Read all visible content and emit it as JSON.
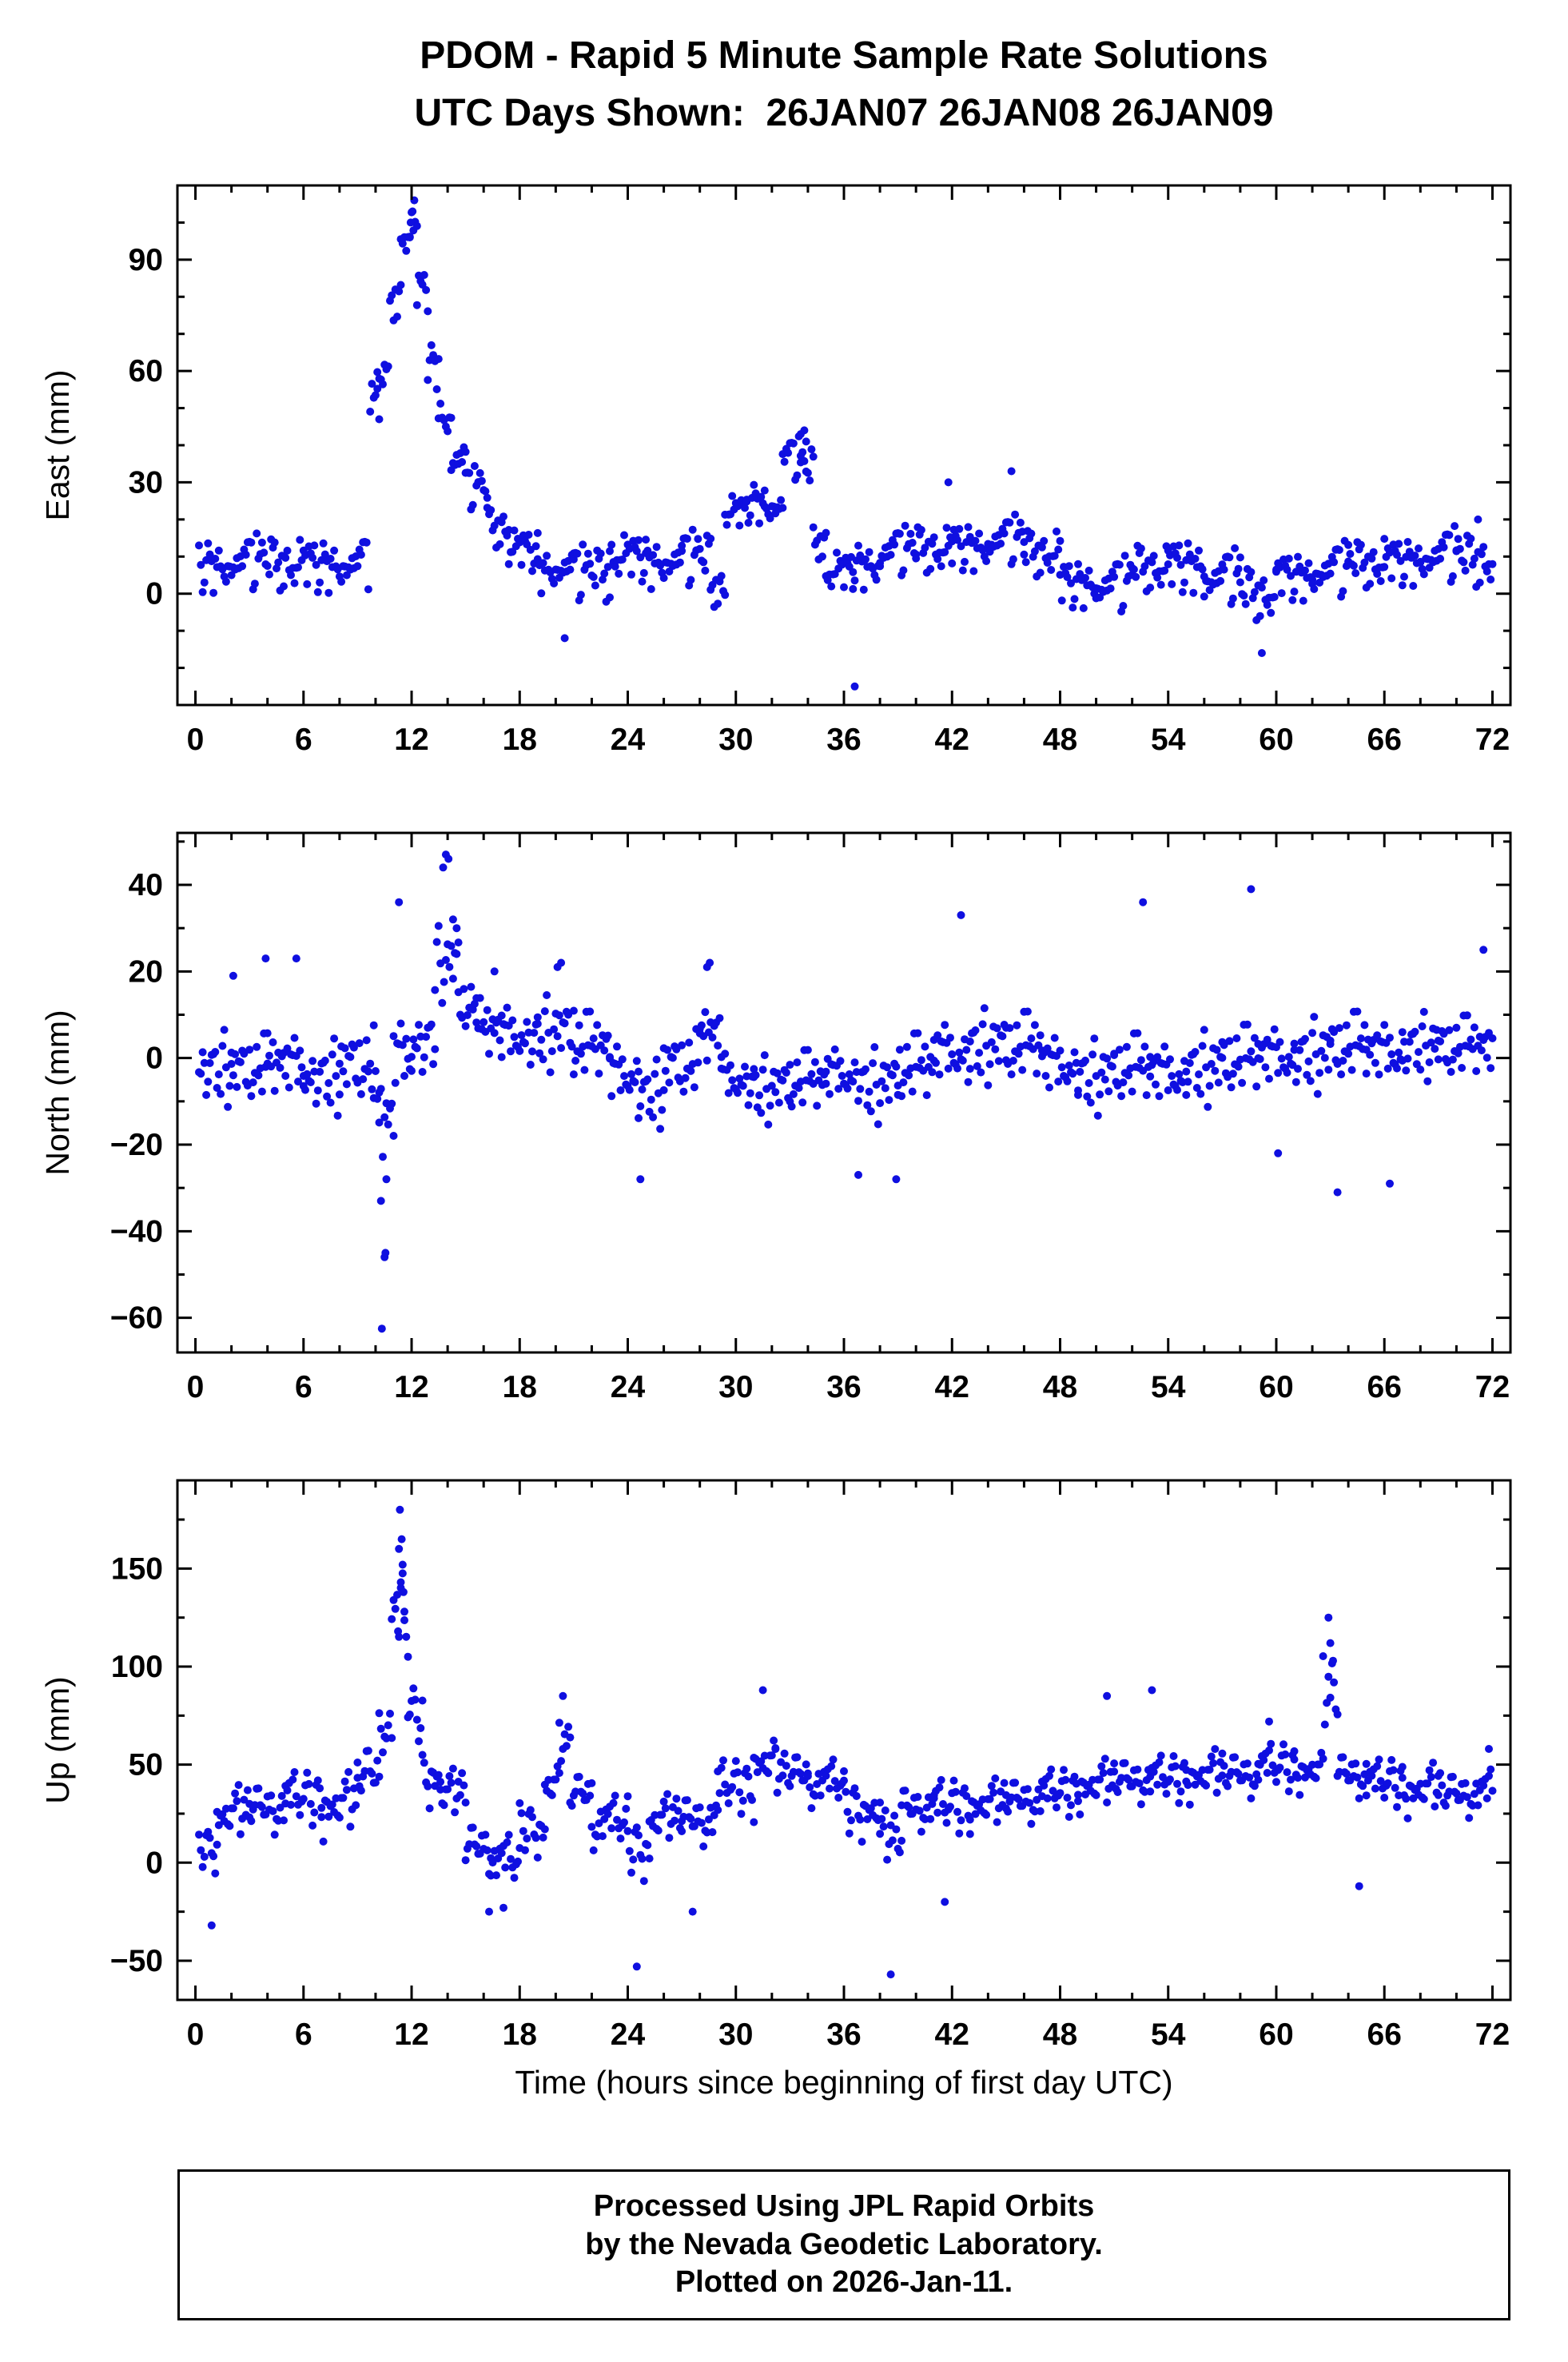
{
  "title": {
    "line1": "PDOM - Rapid 5 Minute Sample Rate Solutions",
    "line2": "UTC Days Shown:  26JAN07 26JAN08 26JAN09"
  },
  "utc_days": [
    "26JAN07",
    "26JAN08",
    "26JAN09"
  ],
  "station": "PDOM",
  "xlabel": "Time (hours since beginning of first day UTC)",
  "footer": {
    "line1": "Processed Using JPL Rapid Orbits",
    "line2": "by the Nevada Geodetic Laboratory.",
    "line3": "Plotted on 2026-Jan-11."
  },
  "point_color": "#0f0fe0",
  "frame_color": "#000000",
  "noise_profile": [
    0.12,
    -0.45,
    0.78,
    -0.23,
    0.56,
    -0.81,
    0.34,
    -0.12,
    0.67,
    -0.56,
    0.23,
    0.91,
    -0.34,
    0.45,
    -0.67,
    0.08,
    0.72,
    -0.29,
    -0.88,
    0.41,
    0.15,
    -0.52,
    0.63,
    -0.07,
    0.84,
    -0.38,
    0.27,
    -0.73,
    0.49,
    0.02,
    -0.61,
    0.35,
    0.88,
    -0.19,
    -0.44,
    0.58,
    -0.92,
    0.21,
    0.66,
    -0.31,
    0.09,
    -0.77,
    0.43,
    0.7,
    -0.15,
    -0.58,
    0.3,
    -0.05,
    0.52,
    -0.4,
    0.76,
    -0.64,
    0.18,
    0.37,
    -0.25,
    0.6,
    -0.85,
    0.04,
    0.47,
    -0.5,
    0.25,
    0.82,
    -0.1,
    -0.36
  ],
  "chart_data": [
    {
      "type": "scatter",
      "name": "east",
      "ylabel": "East (mm)",
      "xlim": [
        -1,
        73
      ],
      "ylim": [
        -30,
        110
      ],
      "yticks": [
        0,
        30,
        60,
        90
      ],
      "yminor": 10,
      "xticks": [
        0,
        6,
        12,
        18,
        24,
        30,
        36,
        42,
        48,
        54,
        60,
        66,
        72
      ],
      "xminor": 2,
      "sample_step_hours": 0.1,
      "segments": [
        [
          0.2,
          9.6,
          8,
          9
        ],
        [
          9.7,
          10.1,
          52,
          5
        ],
        [
          10.1,
          10.7,
          58,
          5
        ],
        [
          10.8,
          11.4,
          80,
          8
        ],
        [
          11.4,
          12.3,
          97,
          8
        ],
        [
          12.3,
          12.9,
          82,
          7
        ],
        [
          12.9,
          13.5,
          62,
          8
        ],
        [
          13.5,
          14.2,
          48,
          8
        ],
        [
          14.2,
          15,
          36,
          8
        ],
        [
          15,
          16.2,
          28,
          7
        ],
        [
          16.2,
          17.4,
          18,
          7
        ],
        [
          17.4,
          19,
          12,
          7
        ],
        [
          19,
          21,
          7,
          8
        ],
        [
          21,
          23,
          5,
          9
        ],
        [
          23,
          25,
          10,
          8
        ],
        [
          25,
          27,
          9,
          9
        ],
        [
          27,
          28.6,
          9,
          9
        ],
        [
          28.6,
          29.4,
          2,
          7
        ],
        [
          29.4,
          30.6,
          22,
          6
        ],
        [
          30.6,
          31.6,
          25,
          7
        ],
        [
          31.6,
          32.6,
          24,
          7
        ],
        [
          32.6,
          33.6,
          36,
          7
        ],
        [
          33.6,
          34.3,
          33,
          8
        ],
        [
          34.3,
          35,
          14,
          6
        ],
        [
          35,
          36.5,
          6,
          7
        ],
        [
          36.5,
          38,
          8,
          8
        ],
        [
          38,
          40,
          11,
          8
        ],
        [
          40,
          42,
          12,
          8
        ],
        [
          42,
          44,
          13,
          8
        ],
        [
          44,
          46,
          14,
          8
        ],
        [
          46,
          48,
          11,
          8
        ],
        [
          48,
          50,
          3,
          8
        ],
        [
          50,
          52,
          2,
          9
        ],
        [
          52,
          54,
          7,
          8
        ],
        [
          54,
          56,
          8,
          9
        ],
        [
          56,
          58,
          4,
          9
        ],
        [
          58,
          60,
          0,
          9
        ],
        [
          60,
          62,
          5,
          8
        ],
        [
          62,
          64,
          6,
          9
        ],
        [
          64,
          66,
          8,
          8
        ],
        [
          66,
          68,
          9,
          8
        ],
        [
          68,
          70,
          10,
          9
        ],
        [
          70,
          72,
          9,
          9
        ]
      ],
      "outliers": [
        [
          12.15,
          106
        ],
        [
          12.05,
          103
        ],
        [
          11.95,
          100
        ],
        [
          11.9,
          96
        ],
        [
          10.2,
          47
        ],
        [
          33.8,
          44
        ],
        [
          33.6,
          43
        ],
        [
          33.9,
          41
        ],
        [
          36.6,
          -25
        ],
        [
          59.2,
          -16
        ],
        [
          20.5,
          -12
        ],
        [
          45.3,
          33
        ],
        [
          41.8,
          30
        ],
        [
          71.2,
          20
        ]
      ]
    },
    {
      "type": "scatter",
      "name": "north",
      "ylabel": "North (mm)",
      "xlim": [
        -1,
        73
      ],
      "ylim": [
        -68,
        52
      ],
      "yticks": [
        -60,
        -40,
        -20,
        0,
        20,
        40
      ],
      "yminor": 10,
      "xticks": [
        0,
        6,
        12,
        18,
        24,
        30,
        36,
        42,
        48,
        54,
        60,
        66,
        72
      ],
      "xminor": 2,
      "sample_step_hours": 0.1,
      "segments": [
        [
          0.2,
          2,
          -2,
          10
        ],
        [
          2,
          4,
          -3,
          10
        ],
        [
          4,
          6,
          -2,
          10
        ],
        [
          6,
          8,
          -4,
          10
        ],
        [
          8,
          9.9,
          -2,
          11
        ],
        [
          9.9,
          10.2,
          -10,
          8
        ],
        [
          10.2,
          11,
          -15,
          14
        ],
        [
          11,
          12,
          0,
          12
        ],
        [
          12,
          13.3,
          4,
          11
        ],
        [
          13.3,
          14.6,
          22,
          10
        ],
        [
          14.6,
          15.6,
          12,
          8
        ],
        [
          15.6,
          17,
          6,
          9
        ],
        [
          17,
          19,
          5,
          10
        ],
        [
          19,
          21,
          6,
          10
        ],
        [
          21,
          23,
          2,
          10
        ],
        [
          23,
          24.6,
          -4,
          10
        ],
        [
          24.6,
          26,
          -8,
          9
        ],
        [
          26,
          28,
          -2,
          10
        ],
        [
          28,
          29.2,
          5,
          10
        ],
        [
          29.2,
          31,
          -5,
          9
        ],
        [
          31,
          33,
          -7,
          9
        ],
        [
          33,
          35,
          -6,
          9
        ],
        [
          35,
          37,
          -4,
          9
        ],
        [
          37,
          39,
          -6,
          10
        ],
        [
          39,
          41,
          -3,
          10
        ],
        [
          41,
          43,
          1,
          10
        ],
        [
          43,
          45,
          3,
          10
        ],
        [
          45,
          47,
          2,
          10
        ],
        [
          47,
          49,
          -2,
          10
        ],
        [
          49,
          51,
          -4,
          10
        ],
        [
          51,
          53,
          -3,
          10
        ],
        [
          53,
          55,
          -4,
          10
        ],
        [
          55,
          57,
          -2,
          10
        ],
        [
          57,
          59,
          -1,
          10
        ],
        [
          59,
          61,
          0,
          10
        ],
        [
          61,
          63,
          1,
          10
        ],
        [
          63,
          65,
          2,
          10
        ],
        [
          65,
          67,
          1,
          10
        ],
        [
          67,
          69,
          3,
          9
        ],
        [
          69,
          72,
          2,
          9
        ]
      ],
      "outliers": [
        [
          10.35,
          -62.5
        ],
        [
          10.5,
          -46
        ],
        [
          10.55,
          -45
        ],
        [
          10.3,
          -33
        ],
        [
          10.6,
          -28
        ],
        [
          11.3,
          36
        ],
        [
          13.9,
          47
        ],
        [
          14.05,
          46
        ],
        [
          13.75,
          44
        ],
        [
          14.3,
          32
        ],
        [
          14.5,
          30
        ],
        [
          2.1,
          19
        ],
        [
          3.9,
          23
        ],
        [
          5.6,
          23
        ],
        [
          16.6,
          20
        ],
        [
          20.1,
          21
        ],
        [
          20.3,
          22
        ],
        [
          24.7,
          -28
        ],
        [
          28.4,
          21
        ],
        [
          28.55,
          22
        ],
        [
          36.8,
          -27
        ],
        [
          38.9,
          -28
        ],
        [
          42.5,
          33
        ],
        [
          52.6,
          36
        ],
        [
          58.6,
          39
        ],
        [
          60.1,
          -22
        ],
        [
          63.4,
          -31
        ],
        [
          66.3,
          -29
        ],
        [
          71.5,
          25
        ]
      ]
    },
    {
      "type": "scatter",
      "name": "up",
      "ylabel": "Up (mm)",
      "xlim": [
        -1,
        73
      ],
      "ylim": [
        -70,
        195
      ],
      "yticks": [
        -50,
        0,
        50,
        100,
        150
      ],
      "yminor": 25,
      "xticks": [
        0,
        6,
        12,
        18,
        24,
        30,
        36,
        42,
        48,
        54,
        60,
        66,
        72
      ],
      "xminor": 2,
      "sample_step_hours": 0.1,
      "segments": [
        [
          0.2,
          1.2,
          8,
          14
        ],
        [
          1.2,
          3,
          25,
          18
        ],
        [
          3,
          5,
          28,
          18
        ],
        [
          5,
          7,
          32,
          18
        ],
        [
          7,
          9,
          30,
          20
        ],
        [
          9,
          10.2,
          45,
          22
        ],
        [
          10.2,
          10.9,
          70,
          18
        ],
        [
          10.9,
          11.8,
          120,
          35
        ],
        [
          11.8,
          12.6,
          75,
          18
        ],
        [
          12.6,
          13.6,
          45,
          18
        ],
        [
          13.6,
          15,
          35,
          16
        ],
        [
          15,
          16.4,
          8,
          18
        ],
        [
          16.4,
          18,
          0,
          18
        ],
        [
          18,
          19.4,
          18,
          16
        ],
        [
          19.4,
          20.2,
          40,
          16
        ],
        [
          20.2,
          20.8,
          60,
          14
        ],
        [
          20.8,
          22,
          35,
          16
        ],
        [
          22,
          24,
          20,
          18
        ],
        [
          24,
          25.2,
          8,
          18
        ],
        [
          25.2,
          27,
          22,
          16
        ],
        [
          27,
          29,
          22,
          18
        ],
        [
          29,
          31,
          38,
          18
        ],
        [
          31,
          32.2,
          52,
          18
        ],
        [
          32.2,
          34,
          45,
          16
        ],
        [
          34,
          36,
          40,
          16
        ],
        [
          36,
          38,
          28,
          18
        ],
        [
          38,
          39.2,
          12,
          18
        ],
        [
          39.2,
          41,
          28,
          16
        ],
        [
          41,
          43,
          28,
          18
        ],
        [
          43,
          45,
          30,
          16
        ],
        [
          45,
          47,
          32,
          16
        ],
        [
          47,
          49,
          35,
          16
        ],
        [
          49,
          51,
          40,
          16
        ],
        [
          51,
          53,
          42,
          16
        ],
        [
          53,
          55,
          42,
          16
        ],
        [
          55,
          57,
          45,
          16
        ],
        [
          57,
          59,
          45,
          16
        ],
        [
          59,
          61,
          48,
          16
        ],
        [
          61,
          62.6,
          48,
          14
        ],
        [
          62.6,
          63.4,
          85,
          25
        ],
        [
          63.4,
          65,
          45,
          16
        ],
        [
          65,
          67,
          40,
          16
        ],
        [
          67,
          69,
          38,
          16
        ],
        [
          69,
          72,
          35,
          16
        ]
      ],
      "outliers": [
        [
          11.35,
          180
        ],
        [
          11.45,
          165
        ],
        [
          11.3,
          160
        ],
        [
          11.5,
          152
        ],
        [
          11.4,
          143
        ],
        [
          11.55,
          138
        ],
        [
          11.6,
          128
        ],
        [
          11.25,
          118
        ],
        [
          0.9,
          -32
        ],
        [
          16.3,
          -25
        ],
        [
          17.1,
          -23
        ],
        [
          24.5,
          -53
        ],
        [
          27.6,
          -25
        ],
        [
          38.6,
          -57
        ],
        [
          31.5,
          88
        ],
        [
          20.4,
          85
        ],
        [
          50.6,
          85
        ],
        [
          53.1,
          88
        ],
        [
          59.6,
          72
        ],
        [
          62.9,
          125
        ],
        [
          63,
          112
        ],
        [
          63.15,
          103
        ],
        [
          64.6,
          -12
        ],
        [
          71.8,
          58
        ],
        [
          41.6,
          -20
        ]
      ]
    }
  ]
}
